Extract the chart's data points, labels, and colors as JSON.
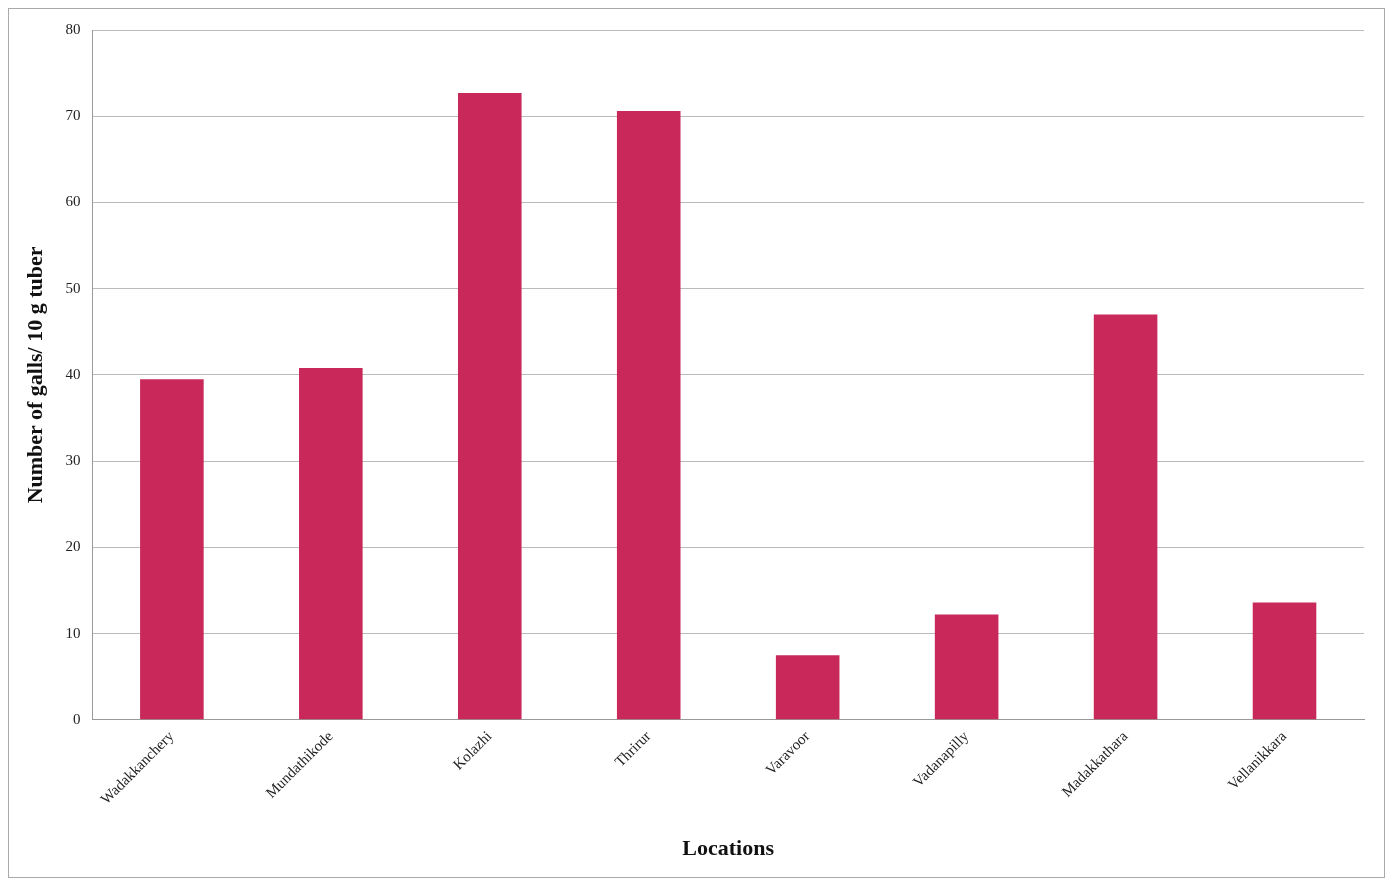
{
  "chart_data": {
    "type": "bar",
    "xlabel": "Locations",
    "ylabel": "Number of galls/ 10 g tuber",
    "categories": [
      "Wadakkanchery",
      "Mundathikode",
      "Kolazhi",
      "Thrirur",
      "Varavoor",
      "Vadanapilly",
      "Madakkathara",
      "Vellanikkara"
    ],
    "values": [
      39.5,
      40.8,
      72.7,
      70.6,
      7.5,
      12.2,
      47,
      13.6
    ],
    "color": "#c8285a",
    "ylim": [
      0,
      80
    ],
    "yticks": [
      0,
      10,
      20,
      30,
      40,
      50,
      60,
      70,
      80
    ],
    "grid": "y",
    "legend": false
  }
}
